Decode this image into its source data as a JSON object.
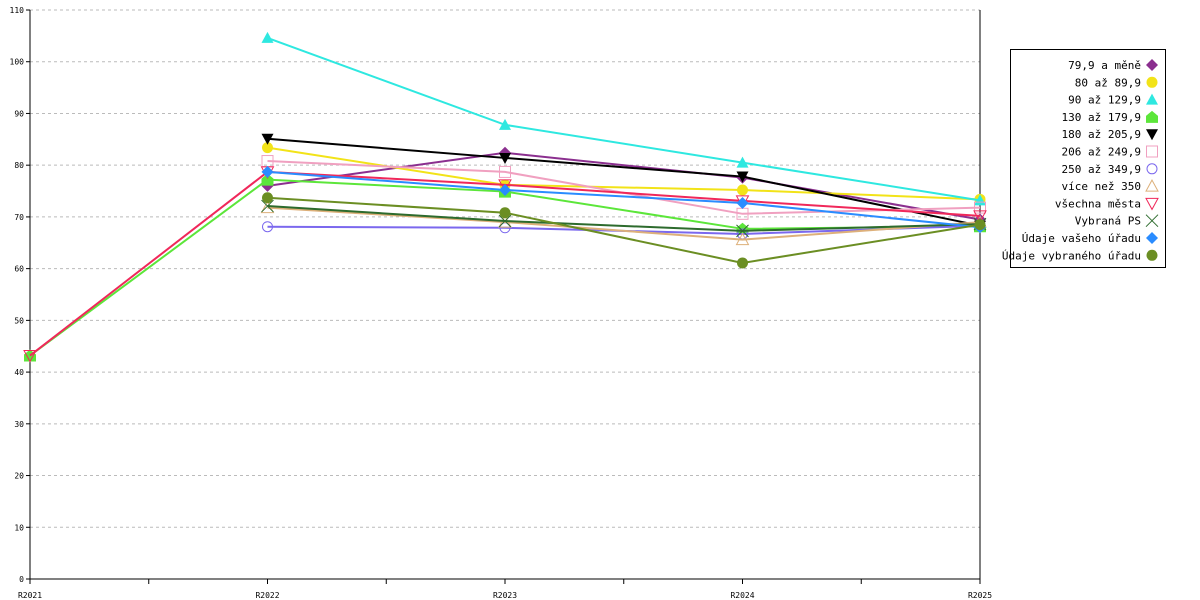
{
  "chart_data": {
    "type": "line",
    "title": "",
    "xlabel": "",
    "ylabel": "",
    "categories": [
      "R2021",
      "R2022",
      "R2023",
      "R2024",
      "R2025"
    ],
    "ylim": [
      0,
      110
    ],
    "yticks": [
      0,
      10,
      20,
      30,
      40,
      50,
      60,
      70,
      80,
      90,
      100,
      110
    ],
    "grid": true,
    "legend_position": "right",
    "series": [
      {
        "name": "79,9 a měně",
        "color": "#8b2f8f",
        "marker": "diamond",
        "values": [
          null,
          76.0,
          82.4,
          77.6,
          69.5
        ]
      },
      {
        "name": "80 až 89,9",
        "color": "#f2e318",
        "marker": "circle",
        "values": [
          null,
          83.4,
          76.2,
          75.2,
          73.4
        ]
      },
      {
        "name": "90 až 129,9",
        "color": "#2ee8e0",
        "marker": "triangle-up",
        "values": [
          null,
          104.6,
          87.8,
          80.5,
          73.2
        ]
      },
      {
        "name": "130 až 179,9",
        "color": "#5ce63a",
        "marker": "pentagon",
        "values": [
          43.2,
          77.2,
          74.9,
          67.7,
          68.2
        ]
      },
      {
        "name": "180 až 205,9",
        "color": "#000000",
        "marker": "triangle-down",
        "values": [
          null,
          85.1,
          81.4,
          77.8,
          68.3
        ]
      },
      {
        "name": "206 až 249,9",
        "color": "#f0a0c0",
        "marker": "square-open",
        "values": [
          null,
          80.8,
          78.7,
          70.6,
          71.8
        ]
      },
      {
        "name": "250 až 349,9",
        "color": "#7b68ee",
        "marker": "circle-open",
        "values": [
          null,
          68.1,
          67.9,
          66.7,
          68.3
        ]
      },
      {
        "name": "více než 350",
        "color": "#ddb07a",
        "marker": "triangle-up-open",
        "values": [
          null,
          71.8,
          69.0,
          65.6,
          69.0
        ]
      },
      {
        "name": "všechna města",
        "color": "#f0285a",
        "marker": "triangle-down-open",
        "values": [
          43.2,
          78.7,
          76.2,
          73.1,
          70.2
        ]
      },
      {
        "name": "Vybraná PS",
        "color": "#2d6b2d",
        "marker": "x",
        "values": [
          null,
          72.1,
          69.2,
          67.3,
          68.6
        ]
      },
      {
        "name": "Údaje vašeho úřadu",
        "color": "#2a8cff",
        "marker": "diamond",
        "values": [
          null,
          78.7,
          75.2,
          72.7,
          68.0
        ]
      },
      {
        "name": "Údaje vybraného úřadu",
        "color": "#6b8e23",
        "marker": "circle",
        "values": [
          null,
          73.7,
          70.8,
          61.1,
          68.5
        ]
      }
    ]
  }
}
